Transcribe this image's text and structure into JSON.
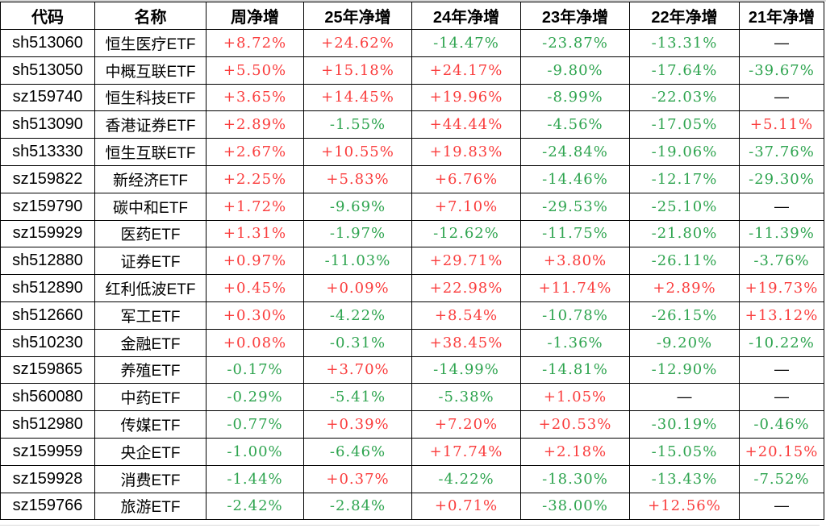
{
  "colors": {
    "positive": "#fa3d3d",
    "negative": "#2ea44f",
    "dash": "#000000",
    "grid": "#000000",
    "outer_gridline": "#d9d9d9"
  },
  "table": {
    "columns": [
      "代码",
      "名称",
      "周净增",
      "25年净增",
      "24年净增",
      "23年净增",
      "22年净增",
      "21年净增"
    ],
    "column_names": [
      "code",
      "name",
      "week-net",
      "25y-net",
      "24y-net",
      "23y-net",
      "22y-net",
      "21y-net"
    ],
    "rows": [
      {
        "code": "sh513060",
        "name": "恒生医疗ETF",
        "values": [
          "+8.72%",
          "+24.62%",
          "-14.47%",
          "-23.87%",
          "-13.31%",
          "—"
        ]
      },
      {
        "code": "sh513050",
        "name": "中概互联ETF",
        "values": [
          "+5.50%",
          "+15.18%",
          "+24.17%",
          "-9.80%",
          "-17.64%",
          "-39.67%"
        ]
      },
      {
        "code": "sz159740",
        "name": "恒生科技ETF",
        "values": [
          "+3.65%",
          "+14.45%",
          "+19.96%",
          "-8.99%",
          "-22.03%",
          "—"
        ]
      },
      {
        "code": "sh513090",
        "name": "香港证券ETF",
        "values": [
          "+2.89%",
          "-1.55%",
          "+44.44%",
          "-4.56%",
          "-17.05%",
          "+5.11%"
        ]
      },
      {
        "code": "sh513330",
        "name": "恒生互联ETF",
        "values": [
          "+2.67%",
          "+10.55%",
          "+19.83%",
          "-24.84%",
          "-19.06%",
          "-37.76%"
        ]
      },
      {
        "code": "sz159822",
        "name": "新经济ETF",
        "values": [
          "+2.25%",
          "+5.83%",
          "+6.76%",
          "-14.46%",
          "-12.17%",
          "-29.30%"
        ]
      },
      {
        "code": "sz159790",
        "name": "碳中和ETF",
        "values": [
          "+1.72%",
          "-9.69%",
          "+7.10%",
          "-29.53%",
          "-25.10%",
          "—"
        ]
      },
      {
        "code": "sz159929",
        "name": "医药ETF",
        "values": [
          "+1.31%",
          "-1.97%",
          "-12.62%",
          "-11.75%",
          "-21.80%",
          "-11.39%"
        ]
      },
      {
        "code": "sh512880",
        "name": "证券ETF",
        "values": [
          "+0.97%",
          "-11.03%",
          "+29.71%",
          "+3.80%",
          "-26.11%",
          "-3.76%"
        ]
      },
      {
        "code": "sh512890",
        "name": "红利低波ETF",
        "values": [
          "+0.45%",
          "+0.09%",
          "+22.98%",
          "+11.74%",
          "+2.89%",
          "+19.73%"
        ]
      },
      {
        "code": "sh512660",
        "name": "军工ETF",
        "values": [
          "+0.30%",
          "-4.22%",
          "+8.54%",
          "-10.78%",
          "-26.15%",
          "+13.12%"
        ]
      },
      {
        "code": "sh510230",
        "name": "金融ETF",
        "values": [
          "+0.08%",
          "-0.31%",
          "+38.45%",
          "-1.36%",
          "-9.20%",
          "-10.22%"
        ]
      },
      {
        "code": "sz159865",
        "name": "养殖ETF",
        "values": [
          "-0.17%",
          "+3.70%",
          "-14.99%",
          "-14.81%",
          "-12.90%",
          "—"
        ]
      },
      {
        "code": "sh560080",
        "name": "中药ETF",
        "values": [
          "-0.29%",
          "-5.41%",
          "-5.38%",
          "+1.05%",
          "—",
          "—"
        ]
      },
      {
        "code": "sh512980",
        "name": "传媒ETF",
        "values": [
          "-0.77%",
          "+0.39%",
          "+7.20%",
          "+20.53%",
          "-30.19%",
          "-0.46%"
        ]
      },
      {
        "code": "sz159959",
        "name": "央企ETF",
        "values": [
          "-1.00%",
          "-6.46%",
          "+17.74%",
          "+2.18%",
          "-15.05%",
          "+20.15%"
        ]
      },
      {
        "code": "sz159928",
        "name": "消费ETF",
        "values": [
          "-1.44%",
          "+0.37%",
          "-4.22%",
          "-18.30%",
          "-13.43%",
          "-7.52%"
        ]
      },
      {
        "code": "sz159766",
        "name": "旅游ETF",
        "values": [
          "-2.42%",
          "-2.84%",
          "+0.71%",
          "-38.00%",
          "+12.56%",
          "—"
        ]
      }
    ]
  }
}
